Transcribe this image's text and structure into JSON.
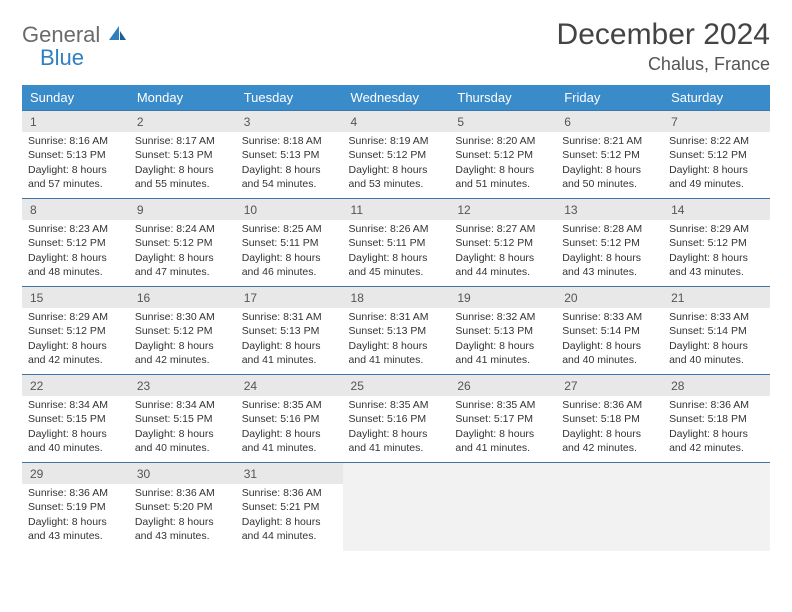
{
  "brand": {
    "line1": "General",
    "line2": "Blue"
  },
  "title": "December 2024",
  "location": "Chalus, France",
  "colors": {
    "header_bg": "#3a8bc9",
    "header_text": "#ffffff",
    "cell_border": "#3a77a8",
    "daynum_bg": "#e8e8e8",
    "brand_gray": "#6b6b6b",
    "brand_blue": "#2f7fc1"
  },
  "weekdays": [
    "Sunday",
    "Monday",
    "Tuesday",
    "Wednesday",
    "Thursday",
    "Friday",
    "Saturday"
  ],
  "days": [
    {
      "n": "1",
      "sr": "8:16 AM",
      "ss": "5:13 PM",
      "dl": "8 hours and 57 minutes."
    },
    {
      "n": "2",
      "sr": "8:17 AM",
      "ss": "5:13 PM",
      "dl": "8 hours and 55 minutes."
    },
    {
      "n": "3",
      "sr": "8:18 AM",
      "ss": "5:13 PM",
      "dl": "8 hours and 54 minutes."
    },
    {
      "n": "4",
      "sr": "8:19 AM",
      "ss": "5:12 PM",
      "dl": "8 hours and 53 minutes."
    },
    {
      "n": "5",
      "sr": "8:20 AM",
      "ss": "5:12 PM",
      "dl": "8 hours and 51 minutes."
    },
    {
      "n": "6",
      "sr": "8:21 AM",
      "ss": "5:12 PM",
      "dl": "8 hours and 50 minutes."
    },
    {
      "n": "7",
      "sr": "8:22 AM",
      "ss": "5:12 PM",
      "dl": "8 hours and 49 minutes."
    },
    {
      "n": "8",
      "sr": "8:23 AM",
      "ss": "5:12 PM",
      "dl": "8 hours and 48 minutes."
    },
    {
      "n": "9",
      "sr": "8:24 AM",
      "ss": "5:12 PM",
      "dl": "8 hours and 47 minutes."
    },
    {
      "n": "10",
      "sr": "8:25 AM",
      "ss": "5:11 PM",
      "dl": "8 hours and 46 minutes."
    },
    {
      "n": "11",
      "sr": "8:26 AM",
      "ss": "5:11 PM",
      "dl": "8 hours and 45 minutes."
    },
    {
      "n": "12",
      "sr": "8:27 AM",
      "ss": "5:12 PM",
      "dl": "8 hours and 44 minutes."
    },
    {
      "n": "13",
      "sr": "8:28 AM",
      "ss": "5:12 PM",
      "dl": "8 hours and 43 minutes."
    },
    {
      "n": "14",
      "sr": "8:29 AM",
      "ss": "5:12 PM",
      "dl": "8 hours and 43 minutes."
    },
    {
      "n": "15",
      "sr": "8:29 AM",
      "ss": "5:12 PM",
      "dl": "8 hours and 42 minutes."
    },
    {
      "n": "16",
      "sr": "8:30 AM",
      "ss": "5:12 PM",
      "dl": "8 hours and 42 minutes."
    },
    {
      "n": "17",
      "sr": "8:31 AM",
      "ss": "5:13 PM",
      "dl": "8 hours and 41 minutes."
    },
    {
      "n": "18",
      "sr": "8:31 AM",
      "ss": "5:13 PM",
      "dl": "8 hours and 41 minutes."
    },
    {
      "n": "19",
      "sr": "8:32 AM",
      "ss": "5:13 PM",
      "dl": "8 hours and 41 minutes."
    },
    {
      "n": "20",
      "sr": "8:33 AM",
      "ss": "5:14 PM",
      "dl": "8 hours and 40 minutes."
    },
    {
      "n": "21",
      "sr": "8:33 AM",
      "ss": "5:14 PM",
      "dl": "8 hours and 40 minutes."
    },
    {
      "n": "22",
      "sr": "8:34 AM",
      "ss": "5:15 PM",
      "dl": "8 hours and 40 minutes."
    },
    {
      "n": "23",
      "sr": "8:34 AM",
      "ss": "5:15 PM",
      "dl": "8 hours and 40 minutes."
    },
    {
      "n": "24",
      "sr": "8:35 AM",
      "ss": "5:16 PM",
      "dl": "8 hours and 41 minutes."
    },
    {
      "n": "25",
      "sr": "8:35 AM",
      "ss": "5:16 PM",
      "dl": "8 hours and 41 minutes."
    },
    {
      "n": "26",
      "sr": "8:35 AM",
      "ss": "5:17 PM",
      "dl": "8 hours and 41 minutes."
    },
    {
      "n": "27",
      "sr": "8:36 AM",
      "ss": "5:18 PM",
      "dl": "8 hours and 42 minutes."
    },
    {
      "n": "28",
      "sr": "8:36 AM",
      "ss": "5:18 PM",
      "dl": "8 hours and 42 minutes."
    },
    {
      "n": "29",
      "sr": "8:36 AM",
      "ss": "5:19 PM",
      "dl": "8 hours and 43 minutes."
    },
    {
      "n": "30",
      "sr": "8:36 AM",
      "ss": "5:20 PM",
      "dl": "8 hours and 43 minutes."
    },
    {
      "n": "31",
      "sr": "8:36 AM",
      "ss": "5:21 PM",
      "dl": "8 hours and 44 minutes."
    }
  ],
  "labels": {
    "sunrise": "Sunrise:",
    "sunset": "Sunset:",
    "daylight": "Daylight:"
  },
  "layout": {
    "start_weekday": 0,
    "total_days": 31,
    "cols": 7
  },
  "typography": {
    "title_size": 30,
    "location_size": 18,
    "weekday_size": 13,
    "cell_size": 10.5
  }
}
